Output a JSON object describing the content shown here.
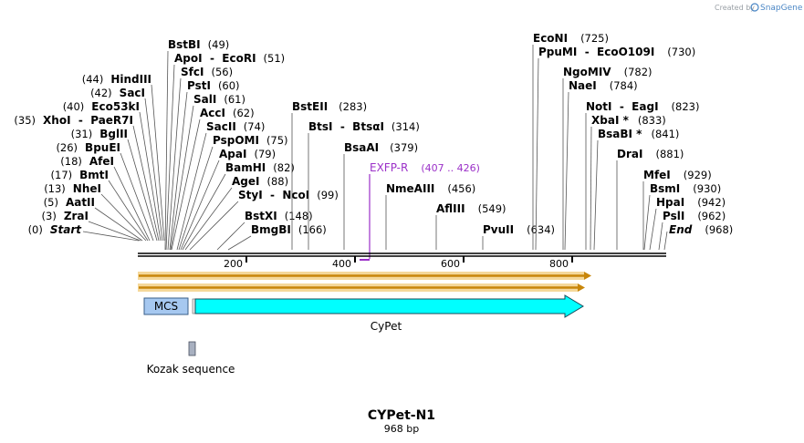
{
  "credit": {
    "text": "Created by",
    "brand": "SnapGene"
  },
  "plasmid": {
    "name": "CYPet-N1",
    "size": "968 bp",
    "length_bp": 968
  },
  "ticks": [
    "200",
    "400",
    "600",
    "800"
  ],
  "sites_left": [
    {
      "name": "HindIII",
      "pos": "(44)"
    },
    {
      "name": "SacI",
      "pos": "(42)"
    },
    {
      "name": "Eco53kI",
      "pos": "(40)"
    },
    {
      "name": "XhoI  -  PaeR7I",
      "pos": "(35)"
    },
    {
      "name": "BglII",
      "pos": "(31)"
    },
    {
      "name": "BpuEI",
      "pos": "(26)"
    },
    {
      "name": "AfeI",
      "pos": "(18)"
    },
    {
      "name": "BmtI",
      "pos": "(17)"
    },
    {
      "name": "NheI",
      "pos": "(13)"
    },
    {
      "name": "AatII",
      "pos": "(5)"
    },
    {
      "name": "ZraI",
      "pos": "(3)"
    },
    {
      "name": "Start",
      "pos": "(0)"
    }
  ],
  "sites_mid": [
    {
      "name": "BstBI",
      "pos": "(49)"
    },
    {
      "name": "ApoI  -  EcoRI",
      "pos": "(51)"
    },
    {
      "name": "SfcI",
      "pos": "(56)"
    },
    {
      "name": "PstI",
      "pos": "(60)"
    },
    {
      "name": "SalI",
      "pos": "(61)"
    },
    {
      "name": "AccI",
      "pos": "(62)"
    },
    {
      "name": "SacII",
      "pos": "(74)"
    },
    {
      "name": "PspOMI",
      "pos": "(75)"
    },
    {
      "name": "ApaI",
      "pos": "(79)"
    },
    {
      "name": "BamHI",
      "pos": "(82)"
    },
    {
      "name": "AgeI",
      "pos": "(88)"
    },
    {
      "name": "StyI  -  NcoI",
      "pos": "(99)"
    },
    {
      "name": "BstXI",
      "pos": "(148)"
    },
    {
      "name": "BmgBI",
      "pos": "(166)"
    },
    {
      "name": "BstEII",
      "pos": "(283)"
    },
    {
      "name": "BtsI  -  BtsαI",
      "pos": "(314)"
    },
    {
      "name": "BsaAI",
      "pos": "(379)"
    },
    {
      "name": "NmeAIII",
      "pos": "(456)"
    },
    {
      "name": "AflIII",
      "pos": "(549)"
    },
    {
      "name": "PvuII",
      "pos": "(634)"
    }
  ],
  "sites_right": [
    {
      "name": "EcoNI",
      "pos": "(725)"
    },
    {
      "name": "PpuMI  -  EcoO109I",
      "pos": "(730)"
    },
    {
      "name": "NgoMIV",
      "pos": "(782)"
    },
    {
      "name": "NaeI",
      "pos": "(784)"
    },
    {
      "name": "NotI  -  EagI",
      "pos": "(823)"
    },
    {
      "name": "XbaI *",
      "pos": "(833)"
    },
    {
      "name": "BsaBI *",
      "pos": "(841)"
    },
    {
      "name": "DraI",
      "pos": "(881)"
    },
    {
      "name": "MfeI",
      "pos": "(929)"
    },
    {
      "name": "BsmI",
      "pos": "(930)"
    },
    {
      "name": "HpaI",
      "pos": "(942)"
    },
    {
      "name": "PslI",
      "pos": "(962)"
    },
    {
      "name": "End",
      "pos": "(968)"
    }
  ],
  "primer": {
    "name": "EXFP-R",
    "range": "(407 .. 426)"
  },
  "features": {
    "mcs": "MCS",
    "cypet": "CyPet",
    "kozak": "Kozak sequence"
  },
  "colors": {
    "backbone": "#000000",
    "orf_fill": "#c8860a",
    "orf_edge": "#f5d89a",
    "mcs": "#a6c8f0",
    "cypet": "#00ffff",
    "kozak": "#a8b0c0",
    "primer": "#9b30c8"
  }
}
